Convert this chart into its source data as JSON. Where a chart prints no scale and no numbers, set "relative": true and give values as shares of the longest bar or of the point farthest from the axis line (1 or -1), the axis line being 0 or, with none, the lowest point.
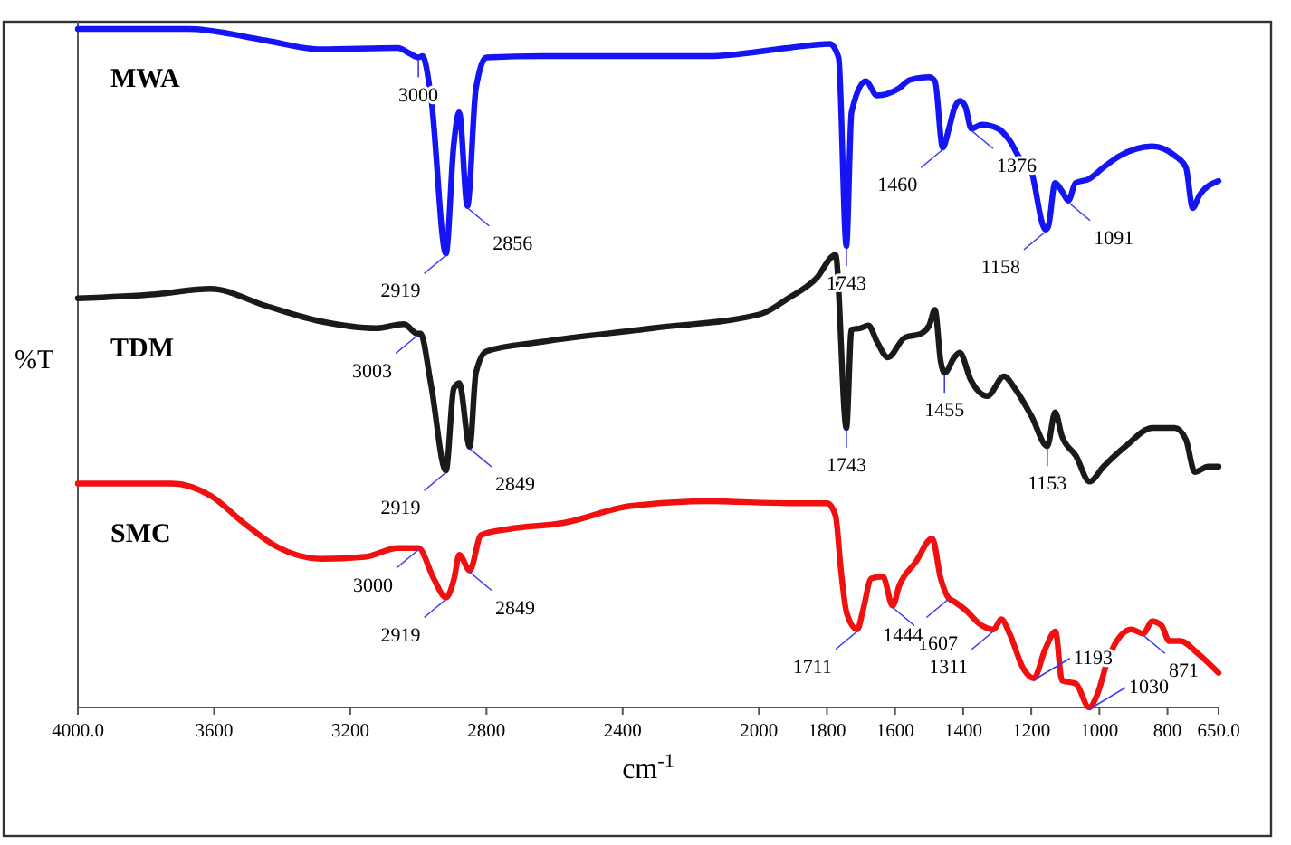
{
  "chart_data": {
    "type": "line",
    "relative": true,
    "xlabel": "cm$^{-1}$",
    "ylabel": "%T",
    "xlim": [
      4000,
      650
    ],
    "xticks": [
      {
        "value": 4000,
        "label": "4000.0"
      },
      3600,
      3200,
      2800,
      2400,
      2000,
      1800,
      1600,
      1400,
      1200,
      1000,
      800,
      {
        "value": 650,
        "label": "650.0"
      }
    ],
    "series": [
      {
        "name": "MWA",
        "color": "#1414f5",
        "x": [
          4000,
          3675,
          3448,
          3286,
          3060,
          3026,
          3000,
          2988,
          2963,
          2919,
          2896,
          2880,
          2856,
          2831,
          2800,
          2637,
          2149,
          1914,
          1792,
          1766,
          1743,
          1728,
          1686,
          1653,
          1590,
          1556,
          1500,
          1483,
          1460,
          1442,
          1426,
          1410,
          1394,
          1376,
          1346,
          1297,
          1264,
          1231,
          1207,
          1158,
          1150,
          1130,
          1110,
          1091,
          1070,
          1030,
          988,
          940,
          844,
          778,
          746,
          726,
          706,
          650
        ],
        "values": [
          1.0,
          1.0,
          0.983,
          0.97,
          0.972,
          0.964,
          0.958,
          0.96,
          0.9,
          0.669,
          0.83,
          0.877,
          0.739,
          0.912,
          0.958,
          0.96,
          0.96,
          0.972,
          0.978,
          0.958,
          0.68,
          0.877,
          0.923,
          0.902,
          0.912,
          0.925,
          0.929,
          0.923,
          0.825,
          0.853,
          0.883,
          0.894,
          0.886,
          0.853,
          0.859,
          0.853,
          0.836,
          0.808,
          0.801,
          0.704,
          0.709,
          0.773,
          0.761,
          0.747,
          0.773,
          0.779,
          0.796,
          0.813,
          0.827,
          0.813,
          0.796,
          0.736,
          0.755,
          0.776
        ]
      },
      {
        "name": "TDM",
        "color": "#1a1a1a",
        "x": [
          4000,
          3772,
          3610,
          3448,
          3286,
          3124,
          3042,
          3003,
          2994,
          2963,
          2919,
          2896,
          2880,
          2849,
          2831,
          2800,
          2637,
          2313,
          1994,
          1914,
          1832,
          1775,
          1743,
          1728,
          1702,
          1678,
          1653,
          1621,
          1572,
          1524,
          1500,
          1483,
          1466,
          1455,
          1426,
          1410,
          1378,
          1329,
          1280,
          1248,
          1199,
          1153,
          1130,
          1110,
          1069,
          1029,
          988,
          923,
          844,
          778,
          746,
          720,
          680,
          650
        ],
        "values": [
          0.603,
          0.609,
          0.617,
          0.592,
          0.569,
          0.559,
          0.565,
          0.551,
          0.551,
          0.476,
          0.349,
          0.47,
          0.478,
          0.384,
          0.493,
          0.525,
          0.539,
          0.559,
          0.58,
          0.603,
          0.632,
          0.667,
          0.412,
          0.557,
          0.559,
          0.563,
          0.539,
          0.516,
          0.545,
          0.551,
          0.563,
          0.586,
          0.51,
          0.493,
          0.516,
          0.523,
          0.483,
          0.459,
          0.488,
          0.47,
          0.429,
          0.385,
          0.435,
          0.4,
          0.371,
          0.333,
          0.355,
          0.385,
          0.412,
          0.412,
          0.395,
          0.347,
          0.355,
          0.355
        ]
      },
      {
        "name": "SMC",
        "color": "#f01010",
        "x": [
          4000,
          3724,
          3610,
          3513,
          3416,
          3286,
          3157,
          3060,
          3000,
          2955,
          2919,
          2895,
          2880,
          2849,
          2816,
          2734,
          2574,
          2377,
          2149,
          1914,
          1799,
          1775,
          1759,
          1742,
          1711,
          1694,
          1670,
          1636,
          1607,
          1588,
          1540,
          1491,
          1466,
          1444,
          1426,
          1394,
          1346,
          1311,
          1288,
          1264,
          1223,
          1193,
          1159,
          1129,
          1110,
          1069,
          1030,
          1008,
          972,
          906,
          871,
          845,
          818,
          795,
          762,
          712,
          650
        ],
        "values": [
          0.33,
          0.33,
          0.312,
          0.272,
          0.237,
          0.219,
          0.222,
          0.235,
          0.235,
          0.19,
          0.162,
          0.19,
          0.225,
          0.202,
          0.254,
          0.263,
          0.272,
          0.297,
          0.304,
          0.301,
          0.301,
          0.283,
          0.202,
          0.139,
          0.115,
          0.144,
          0.19,
          0.193,
          0.15,
          0.179,
          0.214,
          0.249,
          0.19,
          0.162,
          0.156,
          0.144,
          0.121,
          0.115,
          0.13,
          0.109,
          0.057,
          0.043,
          0.086,
          0.112,
          0.04,
          0.035,
          0,
          0.017,
          0.075,
          0.115,
          0.109,
          0.127,
          0.121,
          0.098,
          0.098,
          0.08,
          0.051
        ]
      }
    ],
    "annotations": [
      {
        "text": "3000",
        "x": 3000,
        "y": 0.958
      },
      {
        "text": "2919",
        "x": 2919,
        "y": 0.669
      },
      {
        "text": "2856",
        "x": 2856,
        "y": 0.739
      },
      {
        "text": "1743",
        "x": 1743,
        "y": 0.68
      },
      {
        "text": "1460",
        "x": 1460,
        "y": 0.825
      },
      {
        "text": "1376",
        "x": 1376,
        "y": 0.853
      },
      {
        "text": "1158",
        "x": 1158,
        "y": 0.704
      },
      {
        "text": "1091",
        "x": 1091,
        "y": 0.747
      },
      {
        "text": "3003",
        "x": 3003,
        "y": 0.551
      },
      {
        "text": "2919",
        "x": 2919,
        "y": 0.349
      },
      {
        "text": "2849",
        "x": 2849,
        "y": 0.384
      },
      {
        "text": "1743",
        "x": 1743,
        "y": 0.412
      },
      {
        "text": "1455",
        "x": 1455,
        "y": 0.493
      },
      {
        "text": "1153",
        "x": 1153,
        "y": 0.385
      },
      {
        "text": "3000",
        "x": 3000,
        "y": 0.235
      },
      {
        "text": "2919",
        "x": 2919,
        "y": 0.162
      },
      {
        "text": "2849",
        "x": 2849,
        "y": 0.202
      },
      {
        "text": "1711",
        "x": 1711,
        "y": 0.115
      },
      {
        "text": "1607",
        "x": 1607,
        "y": 0.15
      },
      {
        "text": "1444",
        "x": 1444,
        "y": 0.162
      },
      {
        "text": "1311",
        "x": 1311,
        "y": 0.115
      },
      {
        "text": "1193",
        "x": 1193,
        "y": 0.043
      },
      {
        "text": "1030",
        "x": 1030,
        "y": 0
      },
      {
        "text": "871",
        "x": 871,
        "y": 0.109
      }
    ]
  }
}
